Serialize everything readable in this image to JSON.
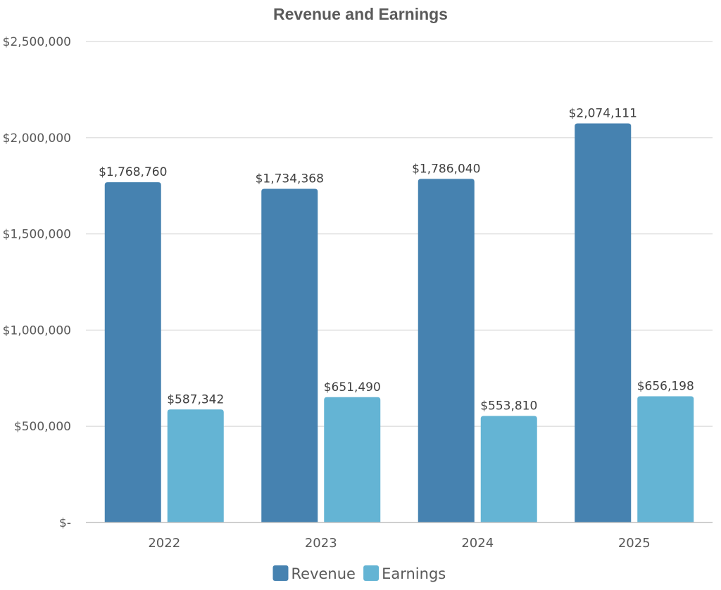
{
  "chart_data": {
    "type": "bar",
    "title": "Revenue and Earnings",
    "xlabel": "",
    "ylabel": "",
    "categories": [
      "2022",
      "2023",
      "2024",
      "2025"
    ],
    "series": [
      {
        "name": "Revenue",
        "color": "#4682b0",
        "values": [
          1768760,
          1734368,
          1786040,
          2074111
        ],
        "labels": [
          "$1,768,760",
          "$1,734,368",
          "$1,786,040",
          "$2,074,111"
        ]
      },
      {
        "name": "Earnings",
        "color": "#64b4d4",
        "values": [
          587342,
          651490,
          553810,
          656198
        ],
        "labels": [
          "$587,342",
          "$651,490",
          "$553,810",
          "$656,198"
        ]
      }
    ],
    "ylim": [
      0,
      2500000
    ],
    "yticks": [
      0,
      500000,
      1000000,
      1500000,
      2000000,
      2500000
    ],
    "ytick_labels": [
      "$-",
      "$500,000",
      "$1,000,000",
      "$1,500,000",
      "$2,000,000",
      "$2,500,000"
    ],
    "grid": true,
    "legend_position": "bottom"
  }
}
